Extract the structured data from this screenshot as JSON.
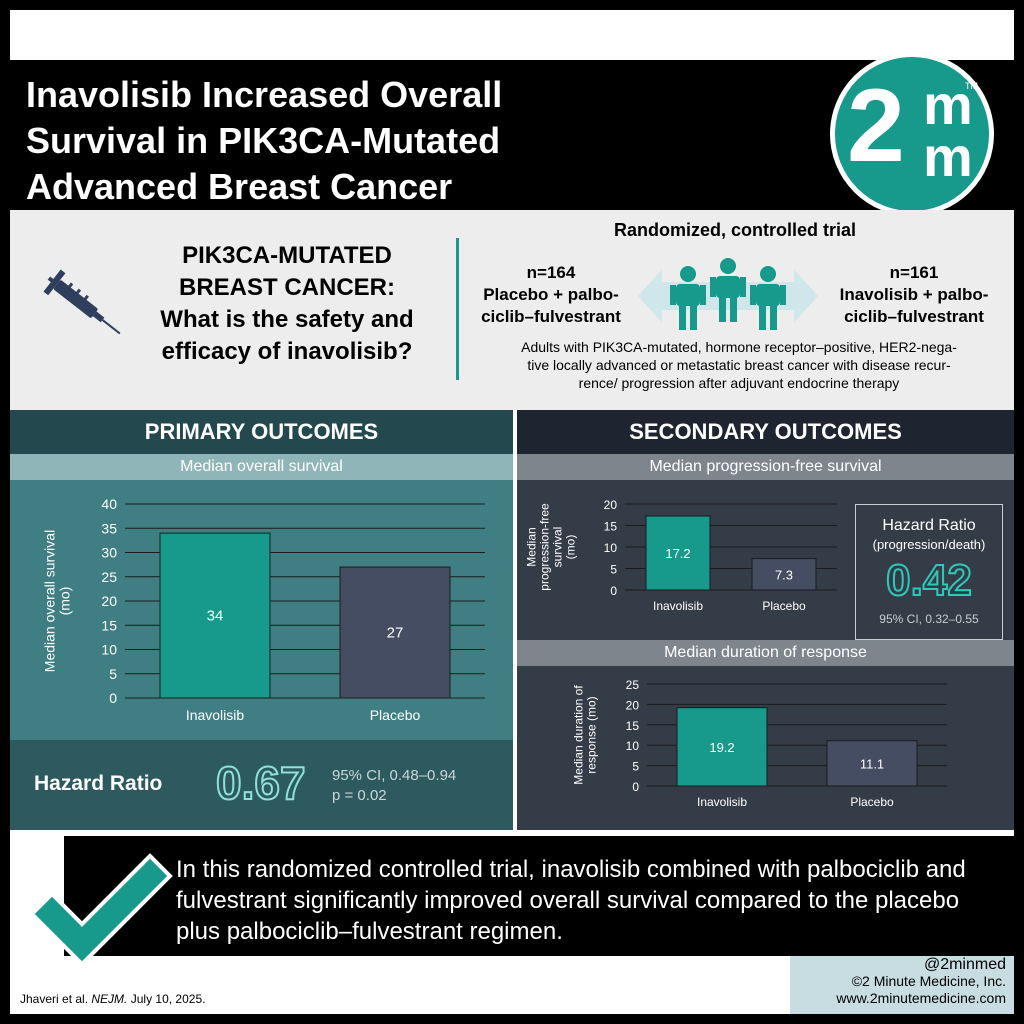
{
  "title": "Inavolisib Increased Overall Survival in PIK3CA-Mutated Advanced Breast Cancer",
  "logo": {
    "main": "2",
    "m1": "m",
    "m2": "m",
    "tm": "TM"
  },
  "question": {
    "line1": "PIK3CA-MUTATED",
    "line2": "BREAST CANCER:",
    "line3": "What is the safety and",
    "line4": "efficacy of inavolisib?",
    "icon": "syringe-icon"
  },
  "trial": {
    "design": "Randomized, controlled trial",
    "left_n": "n=164",
    "left_arm1": "Placebo + palbo-",
    "left_arm2": "ciclib–fulvestrant",
    "right_n": "n=161",
    "right_arm1": "Inavolisib + palbo-",
    "right_arm2": "ciclib–fulvestrant",
    "population_1": "Adults with PIK3CA-mutated, hormone receptor–positive, HER2-nega-",
    "population_2": "tive locally advanced or metastatic breast cancer with disease recur-",
    "population_3": "rence/ progression after adjuvant endocrine therapy"
  },
  "primary": {
    "heading": "PRIMARY OUTCOMES",
    "subheading": "Median overall survival",
    "hazard_label": "Hazard Ratio",
    "hazard_value": "0.67",
    "ci": "95% CI, 0.48–0.94",
    "p": "p = 0.02"
  },
  "secondary": {
    "heading": "SECONDARY OUTCOMES",
    "pfs_subheading": "Median progression-free survival",
    "dor_subheading": "Median duration of response",
    "hr_title": "Hazard Ratio",
    "hr_sub": "(progression/death)",
    "hr_value": "0.42",
    "hr_ci": "95% CI, 0.32–0.55"
  },
  "chart_data": [
    {
      "type": "bar",
      "categories": [
        "Inavolisib",
        "Placebo"
      ],
      "values": [
        34,
        27
      ],
      "ylabel": "Median overall survival (mo)",
      "ylim": [
        0,
        40
      ],
      "yticks": [
        0,
        5,
        10,
        15,
        20,
        25,
        30,
        35,
        40
      ],
      "colors": [
        "#17998c",
        "#444d62"
      ],
      "grid": true
    },
    {
      "type": "bar",
      "categories": [
        "Inavolisib",
        "Placebo"
      ],
      "values": [
        17.2,
        7.3
      ],
      "ylabel": "Median progression-free survival (mo)",
      "ylim": [
        0,
        20
      ],
      "yticks": [
        0,
        5,
        10,
        15,
        20
      ],
      "colors": [
        "#17998c",
        "#444d62"
      ],
      "grid": true
    },
    {
      "type": "bar",
      "categories": [
        "Inavolisib",
        "Placebo"
      ],
      "values": [
        19.2,
        11.1
      ],
      "ylabel": "Median duration of response (mo)",
      "ylim": [
        0,
        25
      ],
      "yticks": [
        0,
        5,
        10,
        15,
        20,
        25
      ],
      "colors": [
        "#17998c",
        "#444d62"
      ],
      "grid": true
    }
  ],
  "conclusion": "In this randomized controlled trial, inavolisib combined with palbociclib and fulvestrant significantly improved overall survival compared to the placebo plus palbociclib–fulvestrant regimen.",
  "citation": {
    "authors": "Jhaveri et al.",
    "journal": "NEJM.",
    "date": "July 10, 2025."
  },
  "credit": {
    "handle": "@2minmed",
    "copyright": "©2 Minute Medicine, Inc.",
    "url": "www.2minutemedicine.com"
  },
  "colors": {
    "teal": "#17998c",
    "slate": "#444d62",
    "primary_bg": "#3f7f83",
    "secondary_bg": "#343c48"
  }
}
